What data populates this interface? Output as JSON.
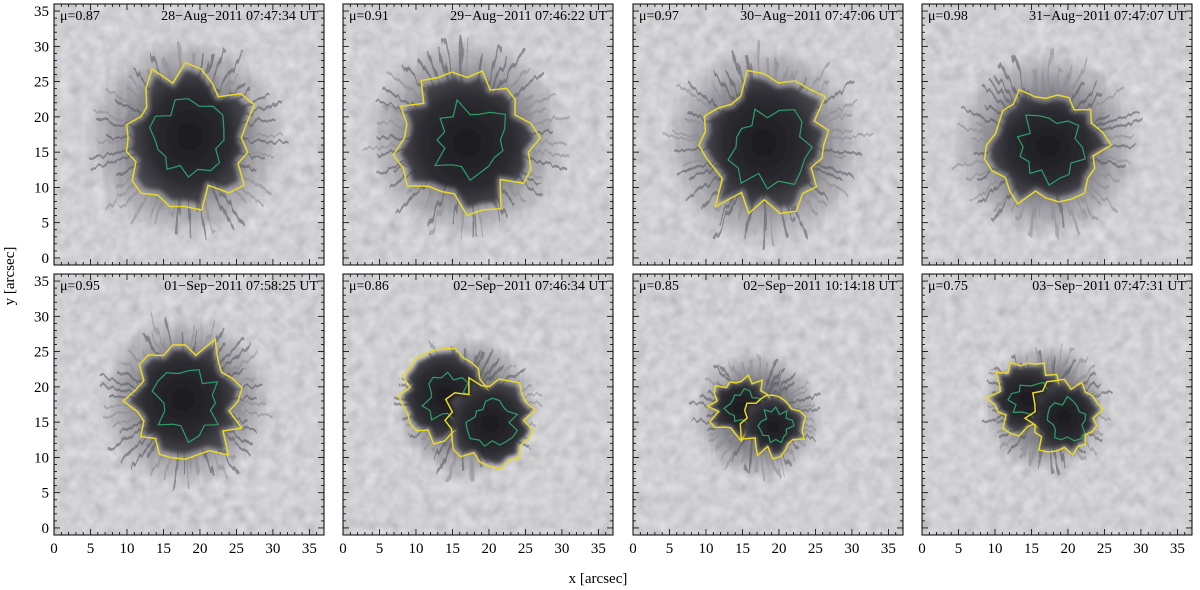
{
  "figure": {
    "x_label": "x   [arcsec]",
    "y_label": "y  [arcsec]",
    "x_ticks": [
      "0",
      "5",
      "10",
      "15",
      "20",
      "25",
      "30",
      "35"
    ],
    "y_ticks": [
      "0",
      "5",
      "10",
      "15",
      "20",
      "25",
      "30",
      "35"
    ],
    "x_range_arcsec": [
      0,
      37
    ],
    "y_range_arcsec": [
      -1,
      36
    ],
    "contour_colors": {
      "penumbra_umbra": "#e8d82a",
      "inner": "#2e9e6a"
    }
  },
  "panels": [
    {
      "mu": "μ=0.87",
      "timestamp": "28−Aug−2011 07:47:34 UT",
      "center": [
        18,
        17
      ],
      "umbra_r": 4.6,
      "penumbra_r": 14,
      "lobes": 1
    },
    {
      "mu": "μ=0.91",
      "timestamp": "29−Aug−2011 07:46:22 UT",
      "center": [
        17,
        17
      ],
      "umbra_r": 4.8,
      "penumbra_r": 14,
      "lobes": 1
    },
    {
      "mu": "μ=0.97",
      "timestamp": "30−Aug−2011 07:47:06 UT",
      "center": [
        18,
        16
      ],
      "umbra_r": 4.8,
      "penumbra_r": 14,
      "lobes": 1
    },
    {
      "mu": "μ=0.98",
      "timestamp": "31−Aug−2011 07:47:07 UT",
      "center": [
        17,
        16
      ],
      "umbra_r": 4.2,
      "penumbra_r": 13,
      "lobes": 1
    },
    {
      "mu": "μ=0.95",
      "timestamp": "01−Sep−2011 07:58:25 UT",
      "center": [
        18,
        18
      ],
      "umbra_r": 4.2,
      "penumbra_r": 12,
      "lobes": 1
    },
    {
      "mu": "μ=0.86",
      "timestamp": "02−Sep−2011 07:46:34 UT",
      "center": [
        17,
        17
      ],
      "umbra_r": 3.4,
      "penumbra_r": 10,
      "lobes": 2
    },
    {
      "mu": "μ=0.85",
      "timestamp": "02−Sep−2011 10:14:18 UT",
      "center": [
        17,
        16
      ],
      "umbra_r": 2.4,
      "penumbra_r": 9,
      "lobes": 2
    },
    {
      "mu": "μ=0.75",
      "timestamp": "03−Sep−2011 07:47:31 UT",
      "center": [
        17,
        17
      ],
      "umbra_r": 2.8,
      "penumbra_r": 9,
      "lobes": 2
    }
  ]
}
